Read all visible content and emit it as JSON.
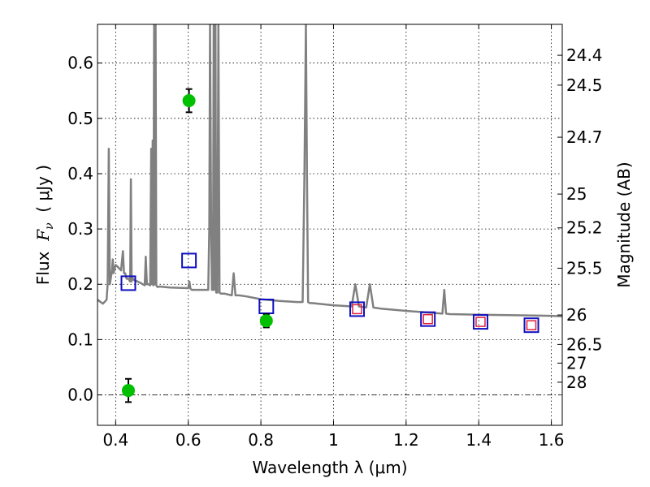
{
  "chart_data": {
    "type": "scatter",
    "title": "",
    "xlabel": "Wavelength  λ (μm)",
    "ylabel": "Flux  F_ν  ( μJy )",
    "ylabel_parts": {
      "prefix": "Flux  ",
      "symbol": "F",
      "subscript": "ν",
      "suffix": "  ( μJy )"
    },
    "y2label": "Magnitude (AB)",
    "xlim": [
      0.35,
      1.63
    ],
    "ylim": [
      -0.055,
      0.67
    ],
    "grid": true,
    "x_ticks": [
      0.4,
      0.6,
      0.8,
      1.0,
      1.2,
      1.4,
      1.6
    ],
    "x_tick_labels": [
      "0.4",
      "0.6",
      "0.8",
      "1",
      "1.2",
      "1.4",
      "1.6"
    ],
    "y_ticks": [
      0.0,
      0.1,
      0.2,
      0.3,
      0.4,
      0.5,
      0.6
    ],
    "y_tick_labels": [
      "0.0",
      "0.1",
      "0.2",
      "0.3",
      "0.4",
      "0.5",
      "0.6"
    ],
    "y2_ticks": [
      {
        "label": "24.4",
        "flux": 0.6141
      },
      {
        "label": "24.5",
        "flux": 0.5601
      },
      {
        "label": "24.7",
        "flux": 0.4659
      },
      {
        "label": "25",
        "flux": 0.3631
      },
      {
        "label": "25.2",
        "flux": 0.302
      },
      {
        "label": "25.5",
        "flux": 0.2291
      },
      {
        "label": "26",
        "flux": 0.1445
      },
      {
        "label": "26.5",
        "flux": 0.0912
      },
      {
        "label": "27",
        "flux": 0.0575
      },
      {
        "label": "28",
        "flux": 0.0229
      }
    ],
    "colors": {
      "spectrum": "#808080",
      "observed": "#00c000",
      "model_box": "#1010c0",
      "model_inner": "#e0203a",
      "errorbar": "#000000"
    },
    "series": [
      {
        "name": "model spectrum",
        "style": "line",
        "x": [
          0.35,
          0.365,
          0.375,
          0.378,
          0.381,
          0.384,
          0.39,
          0.392,
          0.394,
          0.4,
          0.405,
          0.415,
          0.42,
          0.423,
          0.426,
          0.43,
          0.435,
          0.44,
          0.442,
          0.444,
          0.446,
          0.45,
          0.46,
          0.47,
          0.48,
          0.483,
          0.486,
          0.49,
          0.495,
          0.498,
          0.5,
          0.502,
          0.504,
          0.506,
          0.508,
          0.51,
          0.512,
          0.514,
          0.516,
          0.52,
          0.55,
          0.6,
          0.603,
          0.606,
          0.61,
          0.64,
          0.655,
          0.658,
          0.66,
          0.663,
          0.665,
          0.668,
          0.67,
          0.672,
          0.675,
          0.677,
          0.68,
          0.683,
          0.686,
          0.69,
          0.7,
          0.72,
          0.725,
          0.73,
          0.74,
          0.76,
          0.8,
          0.85,
          0.9,
          0.915,
          0.92,
          0.924,
          0.927,
          0.93,
          0.934,
          0.94,
          1.0,
          1.05,
          1.06,
          1.07,
          1.09,
          1.1,
          1.11,
          1.13,
          1.2,
          1.3,
          1.305,
          1.31,
          1.32,
          1.4,
          1.5,
          1.6,
          1.63
        ],
        "y": [
          0.172,
          0.165,
          0.172,
          0.2,
          0.445,
          0.2,
          0.225,
          0.245,
          0.22,
          0.235,
          0.232,
          0.225,
          0.26,
          0.22,
          0.22,
          0.21,
          0.21,
          0.205,
          0.39,
          0.205,
          0.212,
          0.208,
          0.205,
          0.202,
          0.198,
          0.25,
          0.2,
          0.2,
          0.198,
          0.445,
          0.2,
          0.46,
          0.198,
          0.67,
          0.2,
          0.67,
          0.198,
          0.196,
          0.195,
          0.196,
          0.194,
          0.193,
          0.205,
          0.192,
          0.19,
          0.19,
          0.19,
          0.3,
          0.67,
          0.3,
          0.19,
          0.19,
          0.67,
          0.19,
          0.67,
          0.185,
          0.185,
          0.67,
          0.185,
          0.183,
          0.183,
          0.18,
          0.22,
          0.18,
          0.18,
          0.178,
          0.173,
          0.17,
          0.168,
          0.168,
          0.4,
          0.67,
          0.4,
          0.168,
          0.166,
          0.166,
          0.162,
          0.16,
          0.2,
          0.16,
          0.158,
          0.2,
          0.158,
          0.156,
          0.152,
          0.147,
          0.19,
          0.147,
          0.146,
          0.145,
          0.144,
          0.143,
          0.142
        ]
      },
      {
        "name": "model photometry",
        "style": "open-square",
        "x": [
          0.435,
          0.602,
          0.815,
          1.065,
          1.26,
          1.405,
          1.545
        ],
        "y": [
          0.202,
          0.243,
          0.16,
          0.155,
          0.137,
          0.132,
          0.126
        ],
        "inner_marked": [
          false,
          false,
          false,
          true,
          true,
          true,
          true
        ]
      },
      {
        "name": "observed photometry",
        "style": "filled-circle",
        "x": [
          0.435,
          0.602,
          0.815
        ],
        "y": [
          0.008,
          0.532,
          0.134
        ],
        "yerr": [
          0.021,
          0.021,
          0.012
        ]
      }
    ]
  }
}
